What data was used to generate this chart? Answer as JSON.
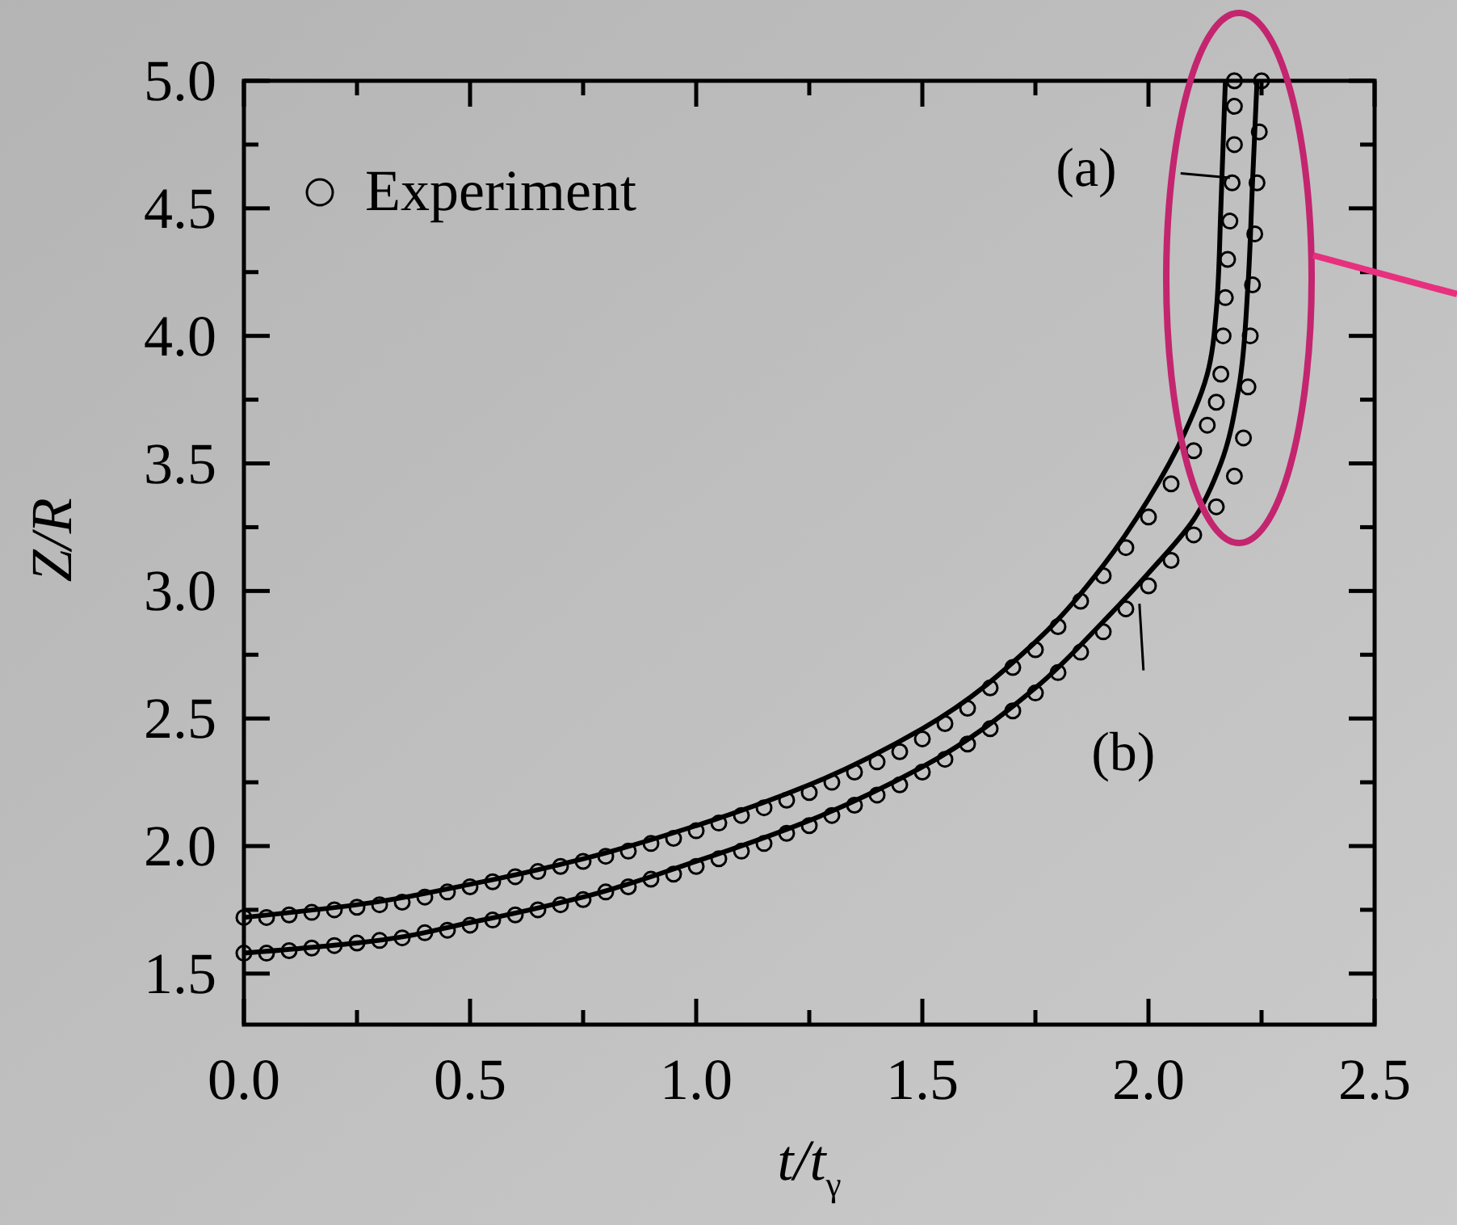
{
  "chart_data": {
    "type": "scatter",
    "xlabel": "t/t$_{γ}$",
    "ylabel": "Z/R",
    "xlim": [
      0,
      2.5
    ],
    "ylim": [
      1.3,
      5.0
    ],
    "xticks": [
      {
        "value": 0,
        "label": "0.0"
      },
      {
        "value": 0.25,
        "label": null
      },
      {
        "value": 0.5,
        "label": "0.5"
      },
      {
        "value": 0.75,
        "label": null
      },
      {
        "value": 1,
        "label": "1.0"
      },
      {
        "value": 1.25,
        "label": null
      },
      {
        "value": 1.5,
        "label": "1.5"
      },
      {
        "value": 1.75,
        "label": null
      },
      {
        "value": 2,
        "label": "2.0"
      },
      {
        "value": 2.25,
        "label": null
      },
      {
        "value": 2.5,
        "label": "2.5"
      }
    ],
    "yticks": [
      {
        "value": 1.5,
        "label": "1.5"
      },
      {
        "value": 1.75,
        "label": null
      },
      {
        "value": 2,
        "label": "2.0"
      },
      {
        "value": 2.25,
        "label": null
      },
      {
        "value": 2.5,
        "label": "2.5"
      },
      {
        "value": 2.75,
        "label": null
      },
      {
        "value": 3,
        "label": "3.0"
      },
      {
        "value": 3.25,
        "label": null
      },
      {
        "value": 3.5,
        "label": "3.5"
      },
      {
        "value": 3.75,
        "label": null
      },
      {
        "value": 4,
        "label": "4.0"
      },
      {
        "value": 4.25,
        "label": null
      },
      {
        "value": 4.5,
        "label": "4.5"
      },
      {
        "value": 4.75,
        "label": null
      },
      {
        "value": 5,
        "label": "5.0"
      }
    ],
    "grid": false,
    "legend": "top left",
    "annotations": [
      {
        "text": "(a)",
        "x": 2.18,
        "y": 4.62
      },
      {
        "text": "(b)",
        "x": 1.98,
        "y": 2.95
      }
    ],
    "series": [
      {
        "name": "Experiment",
        "marker": "circle",
        "color": "#000000",
        "x": [
          0,
          0.05,
          0.1,
          0.15,
          0.2,
          0.25,
          0.3,
          0.35,
          0.4,
          0.45,
          0.5,
          0.55,
          0.6,
          0.65,
          0.7,
          0.75,
          0.8,
          0.85,
          0.9,
          0.95,
          1.0,
          1.05,
          1.1,
          1.15,
          1.2,
          1.25,
          1.3,
          1.35,
          1.4,
          1.45,
          1.5,
          1.55,
          1.6,
          1.65,
          1.7,
          1.75,
          1.8,
          1.85,
          1.9,
          1.95,
          2.0,
          2.05,
          2.1,
          2.13,
          2.15,
          2.16,
          2.165,
          2.17,
          2.175,
          2.18,
          2.185,
          2.19,
          2.19,
          2.19
        ],
        "values": [
          1.72,
          1.72,
          1.73,
          1.74,
          1.75,
          1.76,
          1.77,
          1.78,
          1.8,
          1.82,
          1.84,
          1.86,
          1.88,
          1.9,
          1.92,
          1.94,
          1.96,
          1.98,
          2.01,
          2.03,
          2.06,
          2.09,
          2.12,
          2.15,
          2.18,
          2.21,
          2.25,
          2.29,
          2.33,
          2.37,
          2.42,
          2.48,
          2.54,
          2.62,
          2.7,
          2.77,
          2.86,
          2.96,
          3.06,
          3.17,
          3.29,
          3.42,
          3.55,
          3.65,
          3.74,
          3.85,
          4.0,
          4.15,
          4.3,
          4.45,
          4.6,
          4.75,
          4.9,
          5.0
        ]
      },
      {
        "marker": "circle",
        "color": "#000000",
        "x": [
          0,
          0.05,
          0.1,
          0.15,
          0.2,
          0.25,
          0.3,
          0.35,
          0.4,
          0.45,
          0.5,
          0.55,
          0.6,
          0.65,
          0.7,
          0.75,
          0.8,
          0.85,
          0.9,
          0.95,
          1.0,
          1.05,
          1.1,
          1.15,
          1.2,
          1.25,
          1.3,
          1.35,
          1.4,
          1.45,
          1.5,
          1.55,
          1.6,
          1.65,
          1.7,
          1.75,
          1.8,
          1.85,
          1.9,
          1.95,
          2.0,
          2.05,
          2.1,
          2.15,
          2.19,
          2.21,
          2.22,
          2.225,
          2.23,
          2.235,
          2.24,
          2.245,
          2.25
        ],
        "values": [
          1.58,
          1.58,
          1.59,
          1.6,
          1.61,
          1.62,
          1.63,
          1.64,
          1.66,
          1.67,
          1.69,
          1.71,
          1.73,
          1.75,
          1.77,
          1.79,
          1.82,
          1.84,
          1.87,
          1.89,
          1.92,
          1.95,
          1.98,
          2.01,
          2.05,
          2.08,
          2.12,
          2.16,
          2.2,
          2.24,
          2.29,
          2.34,
          2.4,
          2.46,
          2.53,
          2.6,
          2.68,
          2.76,
          2.84,
          2.93,
          3.02,
          3.12,
          3.22,
          3.33,
          3.45,
          3.6,
          3.8,
          4.0,
          4.2,
          4.4,
          4.6,
          4.8,
          5.0
        ]
      },
      {
        "type": "line",
        "color": "#000000",
        "marker": "none",
        "line_style": "solid",
        "x": [
          0,
          0.25,
          0.5,
          0.75,
          1.0,
          1.25,
          1.5,
          1.75,
          1.9,
          2.0,
          2.08,
          2.13,
          2.15,
          2.16,
          2.17
        ],
        "values": [
          1.72,
          1.77,
          1.85,
          1.95,
          2.08,
          2.24,
          2.46,
          2.8,
          3.1,
          3.36,
          3.62,
          3.85,
          4.1,
          4.5,
          5.0
        ]
      },
      {
        "type": "line",
        "color": "#000000",
        "marker": "none",
        "line_style": "solid",
        "x": [
          0,
          0.25,
          0.5,
          0.75,
          1.0,
          1.25,
          1.5,
          1.75,
          1.9,
          2.0,
          2.1,
          2.16,
          2.2,
          2.22,
          2.23,
          2.24
        ],
        "values": [
          1.58,
          1.62,
          1.7,
          1.8,
          1.94,
          2.1,
          2.31,
          2.62,
          2.88,
          3.07,
          3.28,
          3.5,
          3.8,
          4.2,
          4.6,
          5.0
        ]
      }
    ]
  }
}
